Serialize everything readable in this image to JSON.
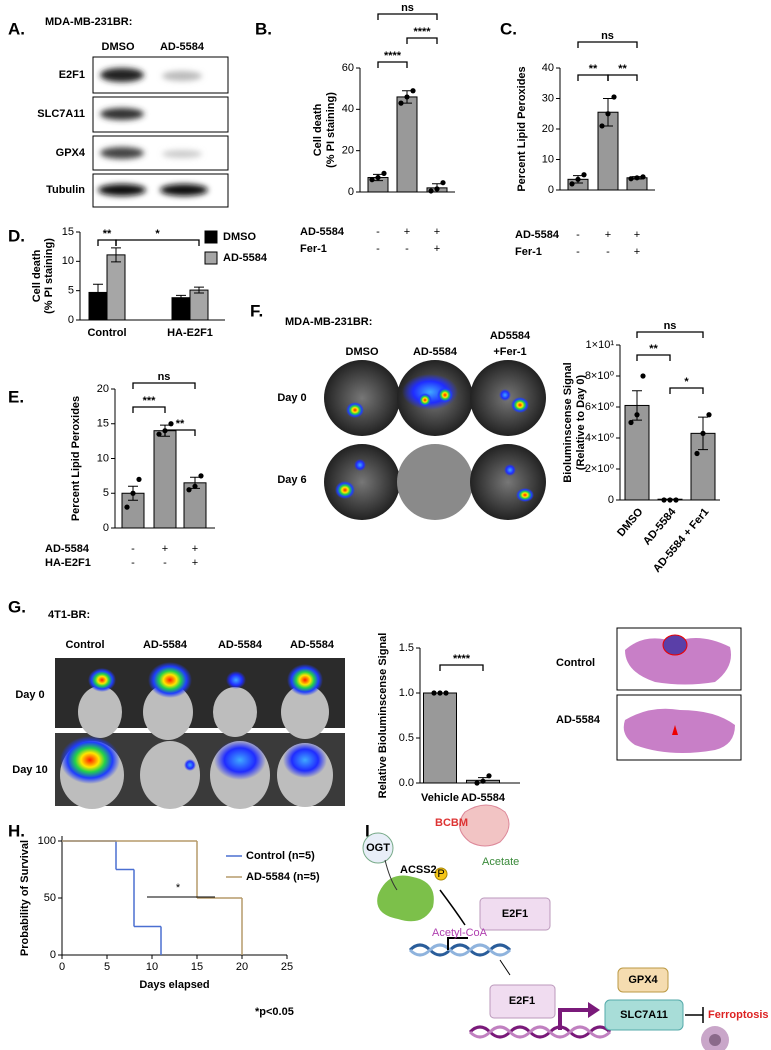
{
  "blot": {
    "panel": "A.",
    "title": "MDA-MB-231BR:",
    "columns": [
      "DMSO",
      "AD-5584"
    ],
    "rows": [
      "E2F1",
      "SLC7A11",
      "GPX4",
      "Tubulin"
    ]
  },
  "imaging_f": {
    "panel": "F.",
    "title": "MDA-MB-231BR:",
    "columns": [
      "DMSO",
      "AD-5584",
      [
        "AD5584",
        "+Fer-1"
      ]
    ],
    "rows": [
      "Day 0",
      "Day 6"
    ]
  },
  "imaging_g": {
    "panel": "G.",
    "title": "4T1-BR:",
    "columns": [
      "Control",
      "AD-5584",
      "AD-5584",
      "AD-5584"
    ],
    "rows": [
      "Day 0",
      "Day 10"
    ]
  },
  "histology": {
    "rows": [
      "Control",
      "AD-5584"
    ]
  },
  "diagram": {
    "panel": "I.",
    "labels": {
      "ogt": "OGT",
      "acss2": "ACSS2",
      "p": "P",
      "bcbm": "BCBM",
      "acetate": "Acetate",
      "acetyl_coa": "Acetyl-CoA",
      "e2f1_top": "E2F1",
      "e2f1_bottom": "E2F1",
      "gpx4": "GPX4",
      "slc7a11": "SLC7A11",
      "ferroptosis": "Ferroptosis"
    }
  },
  "chart_data": [
    {
      "type": "bar",
      "panel": "B.",
      "ylabel": [
        "Cell death",
        "(% PI staining)"
      ],
      "categories": [
        null,
        null,
        null
      ],
      "values": [
        7,
        46,
        2
      ],
      "errors": [
        1.5,
        3,
        2
      ],
      "points": [
        [
          6,
          7,
          9
        ],
        [
          43,
          46,
          49
        ],
        [
          0.5,
          1.5,
          4.5
        ]
      ],
      "color": "#999999",
      "ylim": [
        0,
        60
      ],
      "yticks": [
        0,
        20,
        40,
        60
      ],
      "treatments": [
        {
          "name": "AD-5584",
          "signs": [
            "-",
            "+",
            "+"
          ]
        },
        {
          "name": "Fer-1",
          "signs": [
            "-",
            "-",
            "+"
          ]
        }
      ],
      "significance": [
        "****",
        "****",
        "ns"
      ]
    },
    {
      "type": "bar",
      "panel": "C.",
      "ylabel": [
        "Percent Lipid Peroxides"
      ],
      "categories": [
        null,
        null,
        null
      ],
      "values": [
        3.5,
        25.5,
        4
      ],
      "errors": [
        1.2,
        4.5,
        0.4
      ],
      "points": [
        [
          2,
          3.5,
          5
        ],
        [
          21,
          25,
          30.5
        ],
        [
          3.7,
          4,
          4.3
        ]
      ],
      "color": "#999999",
      "ylim": [
        0,
        40
      ],
      "yticks": [
        0,
        10,
        20,
        30,
        40
      ],
      "treatments": [
        {
          "name": "AD-5584",
          "signs": [
            "-",
            "+",
            "+"
          ]
        },
        {
          "name": "Fer-1",
          "signs": [
            "-",
            "-",
            "+"
          ]
        }
      ],
      "significance": [
        "**",
        "**",
        "ns"
      ]
    },
    {
      "type": "bar",
      "panel": "D.",
      "ylabel": [
        "Cell death",
        "(% PI staining)"
      ],
      "categories": [
        "Control",
        "HA-E2F1"
      ],
      "series": [
        {
          "name": "DMSO",
          "color": "#000000",
          "values": [
            4.7,
            3.8
          ],
          "errors": [
            1.4,
            0.4
          ]
        },
        {
          "name": "AD-5584",
          "color": "#a6a6a6",
          "values": [
            11.1,
            5.1
          ],
          "errors": [
            1.2,
            0.5
          ]
        }
      ],
      "ylim": [
        0,
        15
      ],
      "yticks": [
        0,
        5,
        10,
        15
      ],
      "significance": [
        "**",
        "*"
      ]
    },
    {
      "type": "bar",
      "panel": "E.",
      "ylabel": [
        "Percent Lipid Peroxides"
      ],
      "categories": [
        null,
        null,
        null
      ],
      "values": [
        5,
        14,
        6.5
      ],
      "errors": [
        1,
        0.8,
        0.8
      ],
      "points": [
        [
          3,
          5,
          7
        ],
        [
          13.5,
          14,
          15
        ],
        [
          5.5,
          6,
          7.5
        ]
      ],
      "color": "#999999",
      "ylim": [
        0,
        20
      ],
      "yticks": [
        0,
        5,
        10,
        15,
        20
      ],
      "treatments": [
        {
          "name": "AD-5584",
          "signs": [
            "-",
            "+",
            "+"
          ]
        },
        {
          "name": "HA-E2F1",
          "signs": [
            "-",
            "-",
            "+"
          ]
        }
      ],
      "significance": [
        "***",
        "**",
        "ns"
      ]
    },
    {
      "type": "bar",
      "ylabel": [
        "Bioluminscense Signal",
        "(Relative to Day 0)"
      ],
      "categories": [
        "DMSO",
        "AD-5584",
        "AD-5584 + Fer1"
      ],
      "values": [
        6.1,
        0.05,
        4.3
      ],
      "errors": [
        0.95,
        0,
        1.05
      ],
      "points": [
        [
          5,
          5.5,
          8
        ],
        [
          0,
          0,
          0
        ],
        [
          3,
          4.3,
          5.5
        ]
      ],
      "color": "#999999",
      "ylim": [
        0,
        10
      ],
      "yticks": [
        0,
        {
          "value": 2,
          "label": "2×10⁰"
        },
        {
          "value": 4,
          "label": "4×10⁰"
        },
        {
          "value": 6,
          "label": "6×10⁰"
        },
        {
          "value": 8,
          "label": "8×10⁰"
        },
        {
          "value": 10,
          "label": "1×10¹"
        }
      ],
      "significance": [
        "**",
        "*",
        "ns"
      ]
    },
    {
      "type": "bar",
      "ylabel": [
        "Relative Bioluminscense Signal"
      ],
      "categories": [
        "Vehicle",
        "AD-5584"
      ],
      "values": [
        1.0,
        0.03
      ],
      "errors": [
        0,
        0.03
      ],
      "points": [
        [
          1,
          1,
          1
        ],
        [
          0,
          0.02,
          0.08
        ]
      ],
      "color": "#999999",
      "ylim": [
        0,
        1.5
      ],
      "yticks": [
        {
          "value": 0,
          "label": "0.0"
        },
        0.5,
        {
          "value": 1,
          "label": "1.0"
        },
        1.5
      ],
      "significance": [
        "****"
      ]
    },
    {
      "type": "line",
      "step": true,
      "panel": "H.",
      "xlabel": "Days elapsed",
      "ylabel": "Probability of Survival",
      "series": [
        {
          "name": "Control (n=5)",
          "color": "#4a6fd1",
          "x": [
            0,
            6,
            8,
            11
          ],
          "values": [
            100,
            75,
            25,
            0
          ]
        },
        {
          "name": "AD-5584 (n=5)",
          "color": "#b59a6a",
          "x": [
            0,
            15,
            20
          ],
          "values": [
            100,
            50,
            0
          ]
        }
      ],
      "xlim": [
        0,
        25
      ],
      "xticks": [
        0,
        5,
        10,
        15,
        20,
        25
      ],
      "ylim": [
        0,
        100
      ],
      "yticks": [
        0,
        50,
        100
      ],
      "annotation": "*",
      "note": "*p<0.05"
    }
  ]
}
